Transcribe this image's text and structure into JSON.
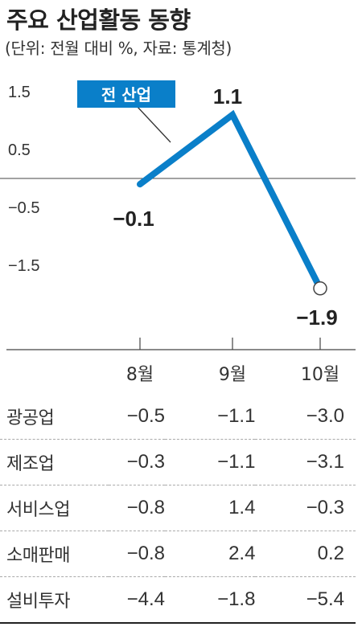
{
  "title": "주요 산업활동 동향",
  "subtitle": "(단위: 전월 대비 %, 자료: 통계청)",
  "colors": {
    "line": "#0a7fc9",
    "axis": "#555555",
    "label_box": "#0a7fc9"
  },
  "chart_data": {
    "type": "line",
    "title": "주요 산업활동 동향",
    "xlabel": "",
    "ylabel": "",
    "categories": [
      "8월",
      "9월",
      "10월"
    ],
    "series": [
      {
        "name": "전 산업",
        "values": [
          -0.1,
          1.1,
          -1.9
        ]
      }
    ],
    "y_ticks": [
      1.5,
      0.5,
      -0.5,
      -1.5
    ],
    "y_tick_labels": [
      "1.5",
      "0.5",
      "−0.5",
      "−1.5"
    ],
    "point_labels": [
      "−0.1",
      "1.1",
      "−1.9"
    ],
    "ylim": [
      -2.5,
      1.9
    ],
    "grid": false
  },
  "table": {
    "rows": [
      {
        "name": "광공업",
        "values": [
          "−0.5",
          "−1.1",
          "−3.0"
        ]
      },
      {
        "name": "제조업",
        "values": [
          "−0.3",
          "−1.1",
          "−3.1"
        ]
      },
      {
        "name": "서비스업",
        "values": [
          "−0.8",
          "1.4",
          "−0.3"
        ]
      },
      {
        "name": "소매판매",
        "values": [
          "−0.8",
          "2.4",
          "0.2"
        ]
      },
      {
        "name": "설비투자",
        "values": [
          "−4.4",
          "−1.8",
          "−5.4"
        ]
      }
    ]
  }
}
